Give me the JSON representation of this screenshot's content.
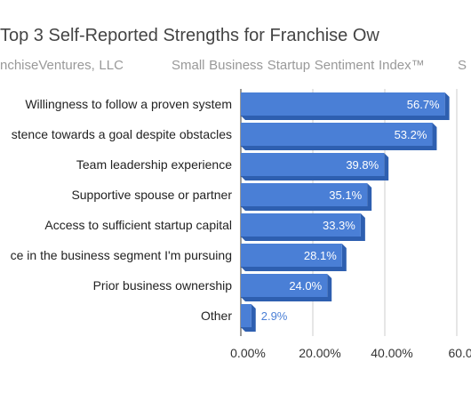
{
  "chart_data": {
    "type": "bar",
    "orientation": "horizontal",
    "title": "Top 3 Self-Reported Strengths for Franchise Ow",
    "subtitle_parts": [
      "nchiseVentures, LLC",
      "Small Business Startup Sentiment Index™",
      "S"
    ],
    "categories": [
      "Willingness to follow a proven system",
      "stence towards a goal despite obstacles",
      "Team leadership experience",
      "Supportive spouse or partner",
      "Access to sufficient startup capital",
      "ce in the business segment I'm pursuing",
      "Prior business ownership",
      "Other"
    ],
    "values": [
      56.7,
      53.2,
      39.8,
      35.1,
      33.3,
      28.1,
      24.0,
      2.9
    ],
    "value_labels": [
      "56.7%",
      "53.2%",
      "39.8%",
      "35.1%",
      "33.3%",
      "28.1%",
      "24.0%",
      "2.9%"
    ],
    "xlim": [
      0,
      60
    ],
    "ticks": [
      0,
      20,
      40,
      60
    ],
    "tick_labels": [
      "0.00%",
      "20.00%",
      "40.00%",
      "60.00"
    ],
    "grid": true,
    "bar_color": "#4a7fd6",
    "bar_side_color": "#2e5fb0"
  }
}
